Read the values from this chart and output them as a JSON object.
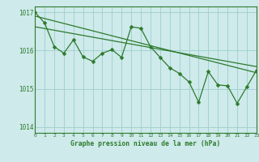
{
  "xlim": [
    0,
    23
  ],
  "ylim": [
    1013.85,
    1017.15
  ],
  "x_ticks": [
    0,
    1,
    2,
    3,
    4,
    5,
    6,
    7,
    8,
    9,
    10,
    11,
    12,
    13,
    14,
    15,
    16,
    17,
    18,
    19,
    20,
    21,
    22,
    23
  ],
  "y_ticks": [
    1014,
    1015,
    1016,
    1017
  ],
  "data_x": [
    0,
    1,
    2,
    3,
    4,
    5,
    6,
    7,
    8,
    9,
    10,
    11,
    12,
    13,
    14,
    15,
    16,
    17,
    18,
    19,
    20,
    21,
    22,
    23
  ],
  "data_y": [
    1017.0,
    1016.72,
    1016.1,
    1015.93,
    1016.28,
    1015.83,
    1015.72,
    1015.93,
    1016.02,
    1015.82,
    1016.62,
    1016.58,
    1016.1,
    1015.82,
    1015.55,
    1015.4,
    1015.18,
    1014.65,
    1015.45,
    1015.1,
    1015.08,
    1014.62,
    1015.05,
    1015.48
  ],
  "trend1_x": [
    0,
    23
  ],
  "trend1_y": [
    1016.9,
    1015.42
  ],
  "trend2_x": [
    0,
    23
  ],
  "trend2_y": [
    1016.62,
    1015.58
  ],
  "line_color": "#2d7a2d",
  "bg_color": "#ceeaea",
  "grid_color": "#9ecece",
  "label_color": "#2d7a2d",
  "marker_size": 2.5,
  "xlabel": "Graphe pression niveau de la mer (hPa)"
}
